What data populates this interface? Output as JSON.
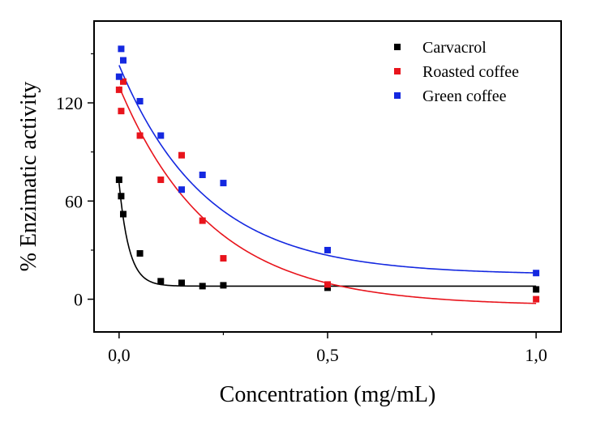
{
  "chart_data": {
    "type": "scatter",
    "xlabel": "Concentration (mg/mL)",
    "ylabel": "% Enzimatic activity",
    "xlim": [
      -0.06,
      1.06
    ],
    "ylim": [
      -20,
      170
    ],
    "xticks": [
      0.0,
      0.5,
      1.0
    ],
    "xtick_labels": [
      "0,0",
      "0,5",
      "1,0"
    ],
    "yticks": [
      0,
      60,
      120
    ],
    "ytick_labels": [
      "0",
      "60",
      "120"
    ],
    "grid": false,
    "legend_position": "top-right",
    "fit_curves": true,
    "series": [
      {
        "name": "Carvacrol",
        "color": "#000000",
        "points": [
          {
            "x": 0.0,
            "y": 73
          },
          {
            "x": 0.005,
            "y": 63
          },
          {
            "x": 0.01,
            "y": 52
          },
          {
            "x": 0.05,
            "y": 28
          },
          {
            "x": 0.1,
            "y": 11
          },
          {
            "x": 0.15,
            "y": 10
          },
          {
            "x": 0.2,
            "y": 8
          },
          {
            "x": 0.25,
            "y": 8.5
          },
          {
            "x": 0.5,
            "y": 7
          },
          {
            "x": 1.0,
            "y": 6
          }
        ],
        "fit": {
          "base": 8,
          "amplitude": 63,
          "decay": 0.024
        }
      },
      {
        "name": "Roasted coffee",
        "color": "#e8141c",
        "points": [
          {
            "x": 0.0,
            "y": 128
          },
          {
            "x": 0.005,
            "y": 115
          },
          {
            "x": 0.01,
            "y": 133
          },
          {
            "x": 0.05,
            "y": 100
          },
          {
            "x": 0.1,
            "y": 73
          },
          {
            "x": 0.15,
            "y": 88
          },
          {
            "x": 0.2,
            "y": 48
          },
          {
            "x": 0.25,
            "y": 25
          },
          {
            "x": 0.5,
            "y": 9
          },
          {
            "x": 1.0,
            "y": 0
          }
        ],
        "fit": {
          "base": -4,
          "amplitude": 134,
          "decay": 0.22
        }
      },
      {
        "name": "Green coffee",
        "color": "#1428e0",
        "points": [
          {
            "x": 0.0,
            "y": 136
          },
          {
            "x": 0.005,
            "y": 153
          },
          {
            "x": 0.01,
            "y": 146
          },
          {
            "x": 0.05,
            "y": 121
          },
          {
            "x": 0.1,
            "y": 100
          },
          {
            "x": 0.15,
            "y": 67
          },
          {
            "x": 0.2,
            "y": 76
          },
          {
            "x": 0.25,
            "y": 71
          },
          {
            "x": 0.5,
            "y": 30
          },
          {
            "x": 1.0,
            "y": 16
          }
        ],
        "fit": {
          "base": 15,
          "amplitude": 128,
          "decay": 0.21
        }
      }
    ]
  }
}
